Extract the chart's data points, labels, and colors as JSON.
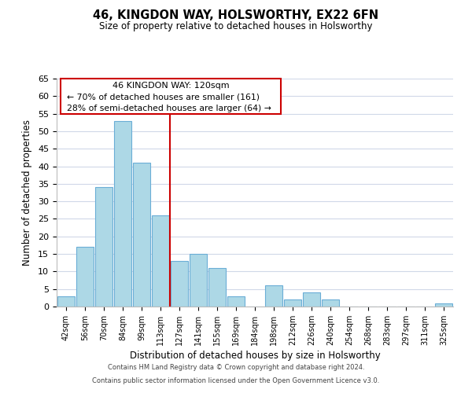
{
  "title": "46, KINGDON WAY, HOLSWORTHY, EX22 6FN",
  "subtitle": "Size of property relative to detached houses in Holsworthy",
  "xlabel": "Distribution of detached houses by size in Holsworthy",
  "ylabel": "Number of detached properties",
  "bar_labels": [
    "42sqm",
    "56sqm",
    "70sqm",
    "84sqm",
    "99sqm",
    "113sqm",
    "127sqm",
    "141sqm",
    "155sqm",
    "169sqm",
    "184sqm",
    "198sqm",
    "212sqm",
    "226sqm",
    "240sqm",
    "254sqm",
    "268sqm",
    "283sqm",
    "297sqm",
    "311sqm",
    "325sqm"
  ],
  "bar_values": [
    3,
    17,
    34,
    53,
    41,
    26,
    13,
    15,
    11,
    3,
    0,
    6,
    2,
    4,
    2,
    0,
    0,
    0,
    0,
    0,
    1
  ],
  "bar_color": "#add8e6",
  "bar_edge_color": "#6baed6",
  "property_line_x": 5.5,
  "annotation_title": "46 KINGDON WAY: 120sqm",
  "annotation_line1": "← 70% of detached houses are smaller (161)",
  "annotation_line2": "28% of semi-detached houses are larger (64) →",
  "ylim": [
    0,
    65
  ],
  "yticks": [
    0,
    5,
    10,
    15,
    20,
    25,
    30,
    35,
    40,
    45,
    50,
    55,
    60,
    65
  ],
  "footer1": "Contains HM Land Registry data © Crown copyright and database right 2024.",
  "footer2": "Contains public sector information licensed under the Open Government Licence v3.0.",
  "bg_color": "#ffffff",
  "grid_color": "#d0d8e8",
  "annotation_box_color": "#ffffff",
  "annotation_box_edge": "#cc0000",
  "property_line_color": "#cc0000"
}
